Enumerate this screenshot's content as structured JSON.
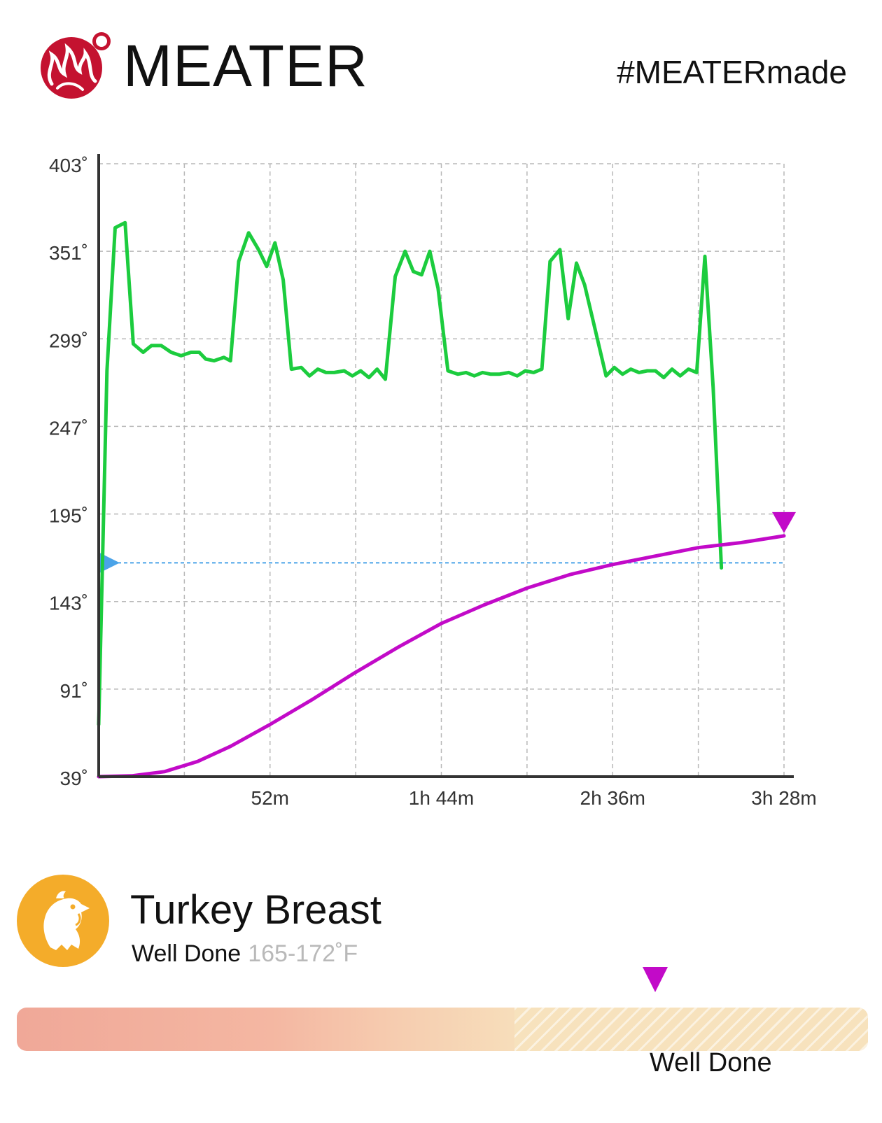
{
  "header": {
    "brand": "MEATER",
    "hashtag": "#MEATERmade",
    "logo_icon": "flame-logo-icon",
    "logo_color": "#c41230"
  },
  "chart_data": {
    "type": "line",
    "y_ticks": [
      "403˚",
      "351˚",
      "299˚",
      "247˚",
      "195˚",
      "143˚",
      "91˚",
      "39˚"
    ],
    "x_ticks": [
      "52m",
      "1h 44m",
      "2h 36m",
      "3h 28m"
    ],
    "ylim": [
      39,
      403
    ],
    "xlim_minutes": [
      0,
      208
    ],
    "grid": true,
    "target_temp": 166,
    "series": [
      {
        "color": "#1ccc3e",
        "points": [
          [
            0,
            70
          ],
          [
            2.5,
            280
          ],
          [
            5,
            365
          ],
          [
            8,
            368
          ],
          [
            10.5,
            296
          ],
          [
            13.5,
            291
          ],
          [
            16,
            295
          ],
          [
            19,
            295
          ],
          [
            22,
            291
          ],
          [
            25,
            289
          ],
          [
            28,
            291
          ],
          [
            30.5,
            291
          ],
          [
            32.5,
            287
          ],
          [
            35,
            286
          ],
          [
            38,
            288
          ],
          [
            40,
            286
          ],
          [
            42.5,
            345
          ],
          [
            45.5,
            362
          ],
          [
            48.5,
            352
          ],
          [
            51,
            342
          ],
          [
            53.5,
            356
          ],
          [
            56,
            334
          ],
          [
            58.5,
            281
          ],
          [
            61.5,
            282
          ],
          [
            64,
            277
          ],
          [
            66.5,
            281
          ],
          [
            69,
            279
          ],
          [
            71.5,
            279
          ],
          [
            74.5,
            280
          ],
          [
            77,
            277
          ],
          [
            79.5,
            280
          ],
          [
            82,
            276
          ],
          [
            84.5,
            281
          ],
          [
            87,
            275
          ],
          [
            90,
            336
          ],
          [
            93,
            351
          ],
          [
            95.5,
            339
          ],
          [
            98,
            337
          ],
          [
            100.5,
            351
          ],
          [
            103,
            329
          ],
          [
            106,
            280
          ],
          [
            109,
            278
          ],
          [
            111.5,
            279
          ],
          [
            114,
            277
          ],
          [
            116.5,
            279
          ],
          [
            119,
            278
          ],
          [
            121.5,
            278
          ],
          [
            124.5,
            279
          ],
          [
            127,
            277
          ],
          [
            129.5,
            280
          ],
          [
            132,
            279
          ],
          [
            134.5,
            281
          ],
          [
            137,
            345
          ],
          [
            140,
            352
          ],
          [
            142.5,
            311
          ],
          [
            145,
            344
          ],
          [
            147.5,
            331
          ],
          [
            150.5,
            306
          ],
          [
            154,
            277
          ],
          [
            156.5,
            282
          ],
          [
            159,
            278
          ],
          [
            161.5,
            281
          ],
          [
            164,
            279
          ],
          [
            166.5,
            280
          ],
          [
            169,
            280
          ],
          [
            171.5,
            276
          ],
          [
            174,
            281
          ],
          [
            176.5,
            277
          ],
          [
            179,
            281
          ],
          [
            181.5,
            279
          ],
          [
            184,
            348
          ],
          [
            186.5,
            270
          ],
          [
            189,
            163
          ]
        ]
      },
      {
        "color": "#c20ac8",
        "points": [
          [
            0,
            39
          ],
          [
            10,
            39.5
          ],
          [
            20,
            42
          ],
          [
            30,
            48
          ],
          [
            40,
            57
          ],
          [
            52,
            70
          ],
          [
            65,
            85
          ],
          [
            78,
            101
          ],
          [
            91,
            116
          ],
          [
            104,
            130
          ],
          [
            117,
            141
          ],
          [
            130,
            151
          ],
          [
            143,
            159
          ],
          [
            156,
            165
          ],
          [
            169,
            170
          ],
          [
            182,
            175
          ],
          [
            195,
            178
          ],
          [
            208,
            182
          ]
        ]
      }
    ]
  },
  "food": {
    "name": "Turkey Breast",
    "doneness": "Well Done",
    "range": "165-172˚F",
    "icon": "turkey-head-icon",
    "icon_bg": "#f4ac2a"
  },
  "doneness_bar": {
    "label": "Well Done",
    "marker_fraction": 0.75,
    "hatch_start_fraction": 0.585,
    "marker_color": "#c20ac8"
  }
}
